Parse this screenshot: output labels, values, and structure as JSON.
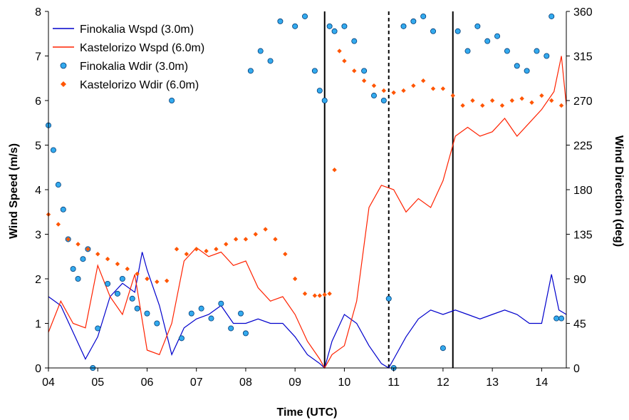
{
  "chart_data": {
    "type": "line",
    "xlabel": "Time (UTC)",
    "ylabel": "Wind Speed (m/s)",
    "y2label": "Wind Direction (deg)",
    "x_ticks": [
      "04",
      "05",
      "06",
      "07",
      "08",
      "09",
      "10",
      "11",
      "12",
      "13",
      "14"
    ],
    "xlim": [
      4,
      14.5
    ],
    "ylim": [
      0,
      8
    ],
    "y_ticks": [
      "0",
      "1",
      "2",
      "3",
      "4",
      "5",
      "6",
      "7",
      "8"
    ],
    "y2lim": [
      0,
      360
    ],
    "y2_ticks": [
      "0",
      "45",
      "90",
      "135",
      "180",
      "225",
      "270",
      "315",
      "360"
    ],
    "legend_position": "top-left",
    "grid": false,
    "colors": {
      "finokalia_wspd": "#0000cc",
      "kastelorizo_wspd": "#ff2200",
      "finokalia_wdir_fill": "#33aaee",
      "finokalia_wdir_edge": "#003c78",
      "kastelorizo_wdir": "#ff5500"
    },
    "series": [
      {
        "name": "Finokalia Wspd (3.0m)",
        "kind": "line",
        "axis": "left",
        "x": [
          4.0,
          4.25,
          4.5,
          4.75,
          5.0,
          5.25,
          5.5,
          5.75,
          5.9,
          6.0,
          6.25,
          6.5,
          6.75,
          7.0,
          7.25,
          7.5,
          7.75,
          8.0,
          8.25,
          8.5,
          8.75,
          9.0,
          9.25,
          9.5,
          9.6,
          9.75,
          10.0,
          10.25,
          10.5,
          10.75,
          10.9,
          11.0,
          11.25,
          11.5,
          11.75,
          12.0,
          12.25,
          12.5,
          12.75,
          13.0,
          13.25,
          13.5,
          13.75,
          14.0,
          14.2,
          14.35,
          14.5
        ],
        "y": [
          1.6,
          1.4,
          0.8,
          0.2,
          0.7,
          1.6,
          1.9,
          1.7,
          2.6,
          2.2,
          1.4,
          0.3,
          0.9,
          1.1,
          1.2,
          1.4,
          1.0,
          1.0,
          1.1,
          1.0,
          1.0,
          0.7,
          0.3,
          0.1,
          0.0,
          0.6,
          1.2,
          1.0,
          0.5,
          0.1,
          0.0,
          0.2,
          0.7,
          1.1,
          1.3,
          1.2,
          1.3,
          1.2,
          1.1,
          1.2,
          1.3,
          1.2,
          1.0,
          1.0,
          2.1,
          1.3,
          1.2
        ]
      },
      {
        "name": "Kastelorizo Wspd (6.0m)",
        "kind": "line",
        "axis": "left",
        "x": [
          4.0,
          4.25,
          4.5,
          4.75,
          5.0,
          5.25,
          5.5,
          5.75,
          6.0,
          6.25,
          6.5,
          6.75,
          7.0,
          7.25,
          7.5,
          7.75,
          8.0,
          8.25,
          8.5,
          8.75,
          9.0,
          9.25,
          9.5,
          9.6,
          9.75,
          10.0,
          10.25,
          10.5,
          10.75,
          11.0,
          11.25,
          11.5,
          11.75,
          12.0,
          12.25,
          12.5,
          12.75,
          13.0,
          13.25,
          13.5,
          13.75,
          14.0,
          14.25,
          14.4,
          14.5
        ],
        "y": [
          0.8,
          1.5,
          1.0,
          0.9,
          2.3,
          1.6,
          1.2,
          2.1,
          0.4,
          0.3,
          1.0,
          2.4,
          2.7,
          2.5,
          2.6,
          2.3,
          2.4,
          1.8,
          1.5,
          1.6,
          1.2,
          0.6,
          0.2,
          0.0,
          0.3,
          0.5,
          1.5,
          3.6,
          4.1,
          4.0,
          3.5,
          3.8,
          3.6,
          4.2,
          5.2,
          5.4,
          5.2,
          5.3,
          5.6,
          5.2,
          5.5,
          5.8,
          6.2,
          7.0,
          5.9
        ]
      },
      {
        "name": "Finokalia Wdir (3.0m)",
        "kind": "scatter",
        "axis": "right",
        "x": [
          4.0,
          4.1,
          4.2,
          4.3,
          4.4,
          4.5,
          4.6,
          4.7,
          4.8,
          4.9,
          5.0,
          5.2,
          5.4,
          5.5,
          5.7,
          5.8,
          6.0,
          6.2,
          6.5,
          6.7,
          6.9,
          7.1,
          7.3,
          7.5,
          7.7,
          7.9,
          8.0,
          8.1,
          8.3,
          8.5,
          8.7,
          9.0,
          9.2,
          9.4,
          9.5,
          9.6,
          9.7,
          9.8,
          10.0,
          10.2,
          10.4,
          10.6,
          10.8,
          10.9,
          11.0,
          11.2,
          11.4,
          11.6,
          11.8,
          12.0,
          12.3,
          12.5,
          12.7,
          12.9,
          13.1,
          13.3,
          13.5,
          13.7,
          13.9,
          14.1,
          14.2,
          14.3,
          14.4
        ],
        "y": [
          245,
          220,
          185,
          160,
          130,
          100,
          90,
          110,
          120,
          0,
          40,
          85,
          75,
          90,
          70,
          60,
          55,
          45,
          270,
          30,
          55,
          60,
          50,
          65,
          40,
          55,
          35,
          300,
          320,
          310,
          350,
          345,
          355,
          300,
          280,
          270,
          345,
          340,
          345,
          330,
          300,
          275,
          270,
          70,
          0,
          345,
          350,
          355,
          340,
          20,
          340,
          320,
          345,
          330,
          335,
          320,
          305,
          300,
          320,
          315,
          355,
          50,
          50
        ]
      },
      {
        "name": "Kastelorizo Wdir (6.0m)",
        "kind": "scatter",
        "axis": "right",
        "x": [
          4.0,
          4.2,
          4.4,
          4.6,
          4.8,
          5.0,
          5.2,
          5.4,
          5.6,
          5.8,
          6.0,
          6.2,
          6.4,
          6.6,
          6.8,
          7.0,
          7.2,
          7.4,
          7.6,
          7.8,
          8.0,
          8.2,
          8.4,
          8.6,
          8.8,
          9.0,
          9.2,
          9.4,
          9.5,
          9.6,
          9.7,
          9.8,
          9.9,
          10.0,
          10.2,
          10.4,
          10.6,
          10.8,
          11.0,
          11.2,
          11.4,
          11.6,
          11.8,
          12.0,
          12.2,
          12.4,
          12.6,
          12.8,
          13.0,
          13.2,
          13.4,
          13.6,
          13.8,
          14.0,
          14.2,
          14.4
        ],
        "y": [
          155,
          145,
          130,
          125,
          120,
          115,
          110,
          105,
          100,
          95,
          90,
          87,
          88,
          120,
          115,
          120,
          118,
          120,
          125,
          130,
          130,
          135,
          140,
          130,
          115,
          90,
          75,
          73,
          73,
          74,
          75,
          200,
          320,
          310,
          300,
          290,
          285,
          280,
          278,
          280,
          285,
          290,
          282,
          282,
          275,
          265,
          270,
          265,
          270,
          265,
          270,
          272,
          268,
          275,
          270,
          265
        ]
      }
    ]
  }
}
